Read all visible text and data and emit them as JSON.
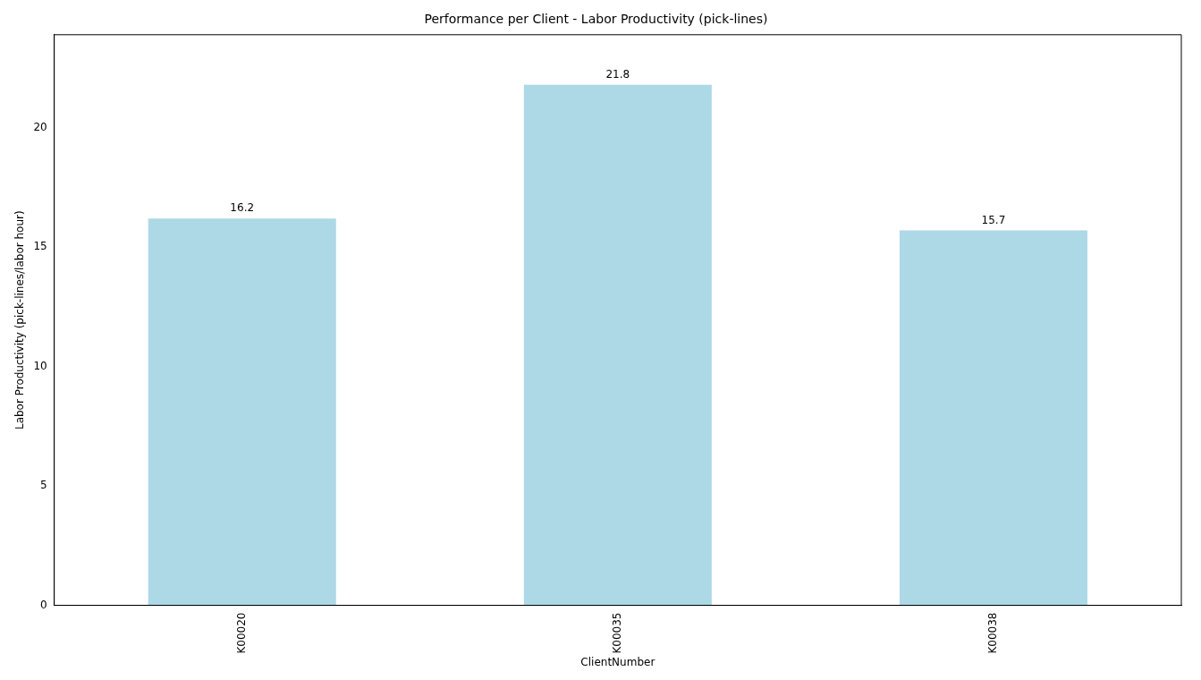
{
  "chart_data": {
    "type": "bar",
    "title": "Performance per Client - Labor Productivity (pick-lines)",
    "xlabel": "ClientNumber",
    "ylabel": "Labor Productivity (pick-lines/labor hour)",
    "categories": [
      "K00020",
      "K00035",
      "K00038"
    ],
    "values": [
      16.2,
      21.8,
      15.7
    ],
    "color": "#add8e6",
    "ylim": [
      0,
      23.9
    ],
    "yticks": [
      0,
      5,
      10,
      15,
      20
    ],
    "grid": false,
    "legend": false,
    "data_labels": true
  }
}
